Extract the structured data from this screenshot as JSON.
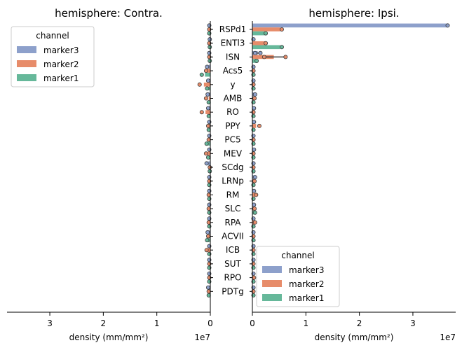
{
  "chart_data": {
    "type": "bar",
    "orientation": "horizontal",
    "layout": "mirrored",
    "categories": [
      "RSPd1",
      "ENTl3",
      "ISN",
      "Acs5",
      "y",
      "AMB",
      "RO",
      "PPY",
      "PC5",
      "MEV",
      "SCdg",
      "LRNp",
      "RM",
      "SLC",
      "RPA",
      "ACVII",
      "ICB",
      "SUT",
      "RPO",
      "PDTg"
    ],
    "series_meta": [
      {
        "name": "marker3",
        "color": "#8da0cb"
      },
      {
        "name": "marker2",
        "color": "#e78c6a"
      },
      {
        "name": "marker1",
        "color": "#66b89a"
      }
    ],
    "legend_title": "channel",
    "xlabel": "density (mm/mm²)",
    "exponent_label": "1e7",
    "panels": [
      {
        "title": "hemisphere: Contra.",
        "xlim": [
          3.8,
          0
        ],
        "xticks": [
          "3",
          "2",
          "1",
          "0"
        ],
        "xtick_values": [
          3,
          2,
          1,
          0
        ],
        "legend_loc": "upper-left",
        "series": [
          {
            "name": "marker3",
            "values": [
              0.01,
              0.01,
              0.01,
              0.03,
              0.02,
              0.03,
              0.02,
              0.01,
              0.01,
              0.01,
              0.05,
              0.01,
              0.01,
              0.01,
              0.01,
              0.03,
              0.01,
              0.01,
              0.01,
              0.02
            ],
            "points": [
              [
                0.02
              ],
              [
                0.01
              ],
              [
                0.02
              ],
              [
                0.06
              ],
              [
                0.04
              ],
              [
                0.05
              ],
              [
                0.04
              ],
              [
                0.02
              ],
              [
                0.02
              ],
              [
                0.02
              ],
              [
                0.07
              ],
              [
                0.02
              ],
              [
                0.02
              ],
              [
                0.02
              ],
              [
                0.02
              ],
              [
                0.05
              ],
              [
                0.02
              ],
              [
                0.02
              ],
              [
                0.02
              ],
              [
                0.04
              ]
            ]
          },
          {
            "name": "marker2",
            "values": [
              0.01,
              0.02,
              0.02,
              0.07,
              0.12,
              0.03,
              0.09,
              0.03,
              0.02,
              0.05,
              0.01,
              0.02,
              0.02,
              0.02,
              0.02,
              0.03,
              0.05,
              0.01,
              0.02,
              0.02
            ],
            "points": [
              [
                0.02
              ],
              [
                0.02
              ],
              [
                0.02
              ],
              [
                0.08
              ],
              [
                0.2
              ],
              [
                0.08
              ],
              [
                0.16
              ],
              [
                0.04
              ],
              [
                0.03
              ],
              [
                0.08
              ],
              [
                0.01
              ],
              [
                0.02
              ],
              [
                0.03
              ],
              [
                0.03
              ],
              [
                0.03
              ],
              [
                0.04
              ],
              [
                0.07
              ],
              [
                0.02
              ],
              [
                0.02
              ],
              [
                0.03
              ]
            ]
          },
          {
            "name": "marker1",
            "values": [
              0.01,
              0.01,
              0.01,
              0.1,
              0.03,
              0.02,
              0.02,
              0.02,
              0.05,
              0.03,
              0.01,
              0.02,
              0.01,
              0.01,
              0.01,
              0.04,
              0.01,
              0.01,
              0.01,
              0.02
            ],
            "points": [
              [
                0.02
              ],
              [
                0.01
              ],
              [
                0.01
              ],
              [
                0.16
              ],
              [
                0.06
              ],
              [
                0.03
              ],
              [
                0.03
              ],
              [
                0.03
              ],
              [
                0.07
              ],
              [
                0.04
              ],
              [
                0.01
              ],
              [
                0.02
              ],
              [
                0.02
              ],
              [
                0.02
              ],
              [
                0.02
              ],
              [
                0.06
              ],
              [
                0.02
              ],
              [
                0.02
              ],
              [
                0.02
              ],
              [
                0.03
              ]
            ]
          }
        ]
      },
      {
        "title": "hemisphere: Ipsi.",
        "xlim": [
          0,
          3.8
        ],
        "xticks": [
          "0",
          "1",
          "2",
          "3"
        ],
        "xtick_values": [
          0,
          1,
          2,
          3
        ],
        "legend_loc": "lower-left",
        "series": [
          {
            "name": "marker3",
            "values": [
              3.65,
              0.01,
              0.1,
              0.01,
              0.01,
              0.03,
              0.02,
              0.02,
              0.01,
              0.02,
              0.01,
              0.04,
              0.02,
              0.02,
              0.01,
              0.01,
              0.01,
              0.01,
              0.01,
              0.01
            ],
            "points": [
              [
                3.65
              ],
              [
                0.02
              ],
              [
                0.15,
                0.05
              ],
              [
                0.02
              ],
              [
                0.02
              ],
              [
                0.05
              ],
              [
                0.03
              ],
              [
                0.03
              ],
              [
                0.02
              ],
              [
                0.03
              ],
              [
                0.02
              ],
              [
                0.05
              ],
              [
                0.03
              ],
              [
                0.03
              ],
              [
                0.02
              ],
              [
                0.02
              ],
              [
                0.02
              ],
              [
                0.02
              ],
              [
                0.02
              ],
              [
                0.02
              ]
            ]
          },
          {
            "name": "marker2",
            "values": [
              0.52,
              0.25,
              0.4,
              0.01,
              0.01,
              0.02,
              0.01,
              0.07,
              0.01,
              0.01,
              0.01,
              0.03,
              0.05,
              0.03,
              0.03,
              0.01,
              0.02,
              0.01,
              0.02,
              0.01
            ],
            "points": [
              [
                0.55
              ],
              [
                0.25
              ],
              [
                0.62,
                0.22
              ],
              [
                0.02
              ],
              [
                0.02
              ],
              [
                0.04
              ],
              [
                0.02
              ],
              [
                0.13
              ],
              [
                0.02
              ],
              [
                0.02
              ],
              [
                0.02
              ],
              [
                0.04
              ],
              [
                0.07
              ],
              [
                0.04
              ],
              [
                0.05
              ],
              [
                0.02
              ],
              [
                0.02
              ],
              [
                0.02
              ],
              [
                0.03
              ],
              [
                0.02
              ]
            ]
          },
          {
            "name": "marker1",
            "values": [
              0.25,
              0.52,
              0.08,
              0.01,
              0.01,
              0.01,
              0.01,
              0.01,
              0.01,
              0.01,
              0.01,
              0.01,
              0.01,
              0.04,
              0.01,
              0.01,
              0.01,
              0.01,
              0.01,
              0.01
            ],
            "points": [
              [
                0.25
              ],
              [
                0.55
              ],
              [
                0.08
              ],
              [
                0.02
              ],
              [
                0.02
              ],
              [
                0.02
              ],
              [
                0.02
              ],
              [
                0.02
              ],
              [
                0.02
              ],
              [
                0.02
              ],
              [
                0.02
              ],
              [
                0.02
              ],
              [
                0.02
              ],
              [
                0.05
              ],
              [
                0.02
              ],
              [
                0.02
              ],
              [
                0.02
              ],
              [
                0.02
              ],
              [
                0.02
              ],
              [
                0.02
              ]
            ]
          }
        ]
      }
    ]
  }
}
